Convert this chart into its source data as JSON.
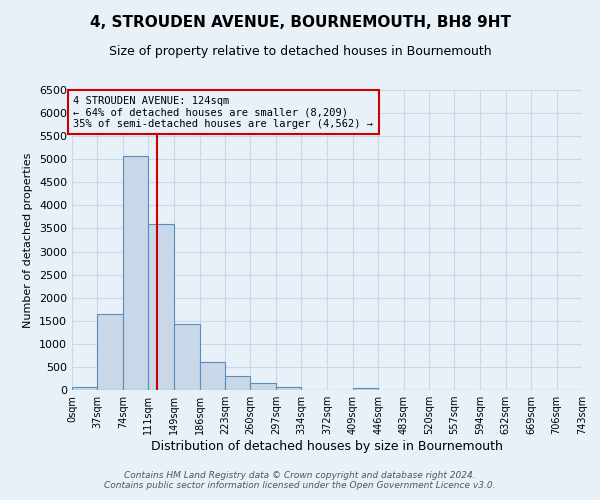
{
  "title": "4, STROUDEN AVENUE, BOURNEMOUTH, BH8 9HT",
  "subtitle": "Size of property relative to detached houses in Bournemouth",
  "xlabel": "Distribution of detached houses by size in Bournemouth",
  "ylabel": "Number of detached properties",
  "footer_line1": "Contains HM Land Registry data © Crown copyright and database right 2024.",
  "footer_line2": "Contains public sector information licensed under the Open Government Licence v3.0.",
  "bin_edges": [
    0,
    37,
    74,
    111,
    149,
    186,
    223,
    260,
    297,
    334,
    372,
    409,
    446,
    483,
    520,
    557,
    594,
    632,
    669,
    706,
    743
  ],
  "bin_labels": [
    "0sqm",
    "37sqm",
    "74sqm",
    "111sqm",
    "149sqm",
    "186sqm",
    "223sqm",
    "260sqm",
    "297sqm",
    "334sqm",
    "372sqm",
    "409sqm",
    "446sqm",
    "483sqm",
    "520sqm",
    "557sqm",
    "594sqm",
    "632sqm",
    "669sqm",
    "706sqm",
    "743sqm"
  ],
  "counts": [
    60,
    1650,
    5080,
    3600,
    1420,
    610,
    300,
    145,
    60,
    10,
    5,
    50,
    0,
    0,
    0,
    0,
    0,
    0,
    0,
    0
  ],
  "bar_color": "#c8d8e8",
  "bar_edge_color": "#5b8db8",
  "property_size": 124,
  "vline_x": 124,
  "vline_color": "#cc0000",
  "annotation_title": "4 STROUDEN AVENUE: 124sqm",
  "annotation_line2": "← 64% of detached houses are smaller (8,209)",
  "annotation_line3": "35% of semi-detached houses are larger (4,562) →",
  "annotation_box_edge": "#cc0000",
  "ylim": [
    0,
    6500
  ],
  "yticks": [
    0,
    500,
    1000,
    1500,
    2000,
    2500,
    3000,
    3500,
    4000,
    4500,
    5000,
    5500,
    6000,
    6500
  ],
  "grid_color": "#c8d8e8",
  "bg_color": "#e8f0f8"
}
